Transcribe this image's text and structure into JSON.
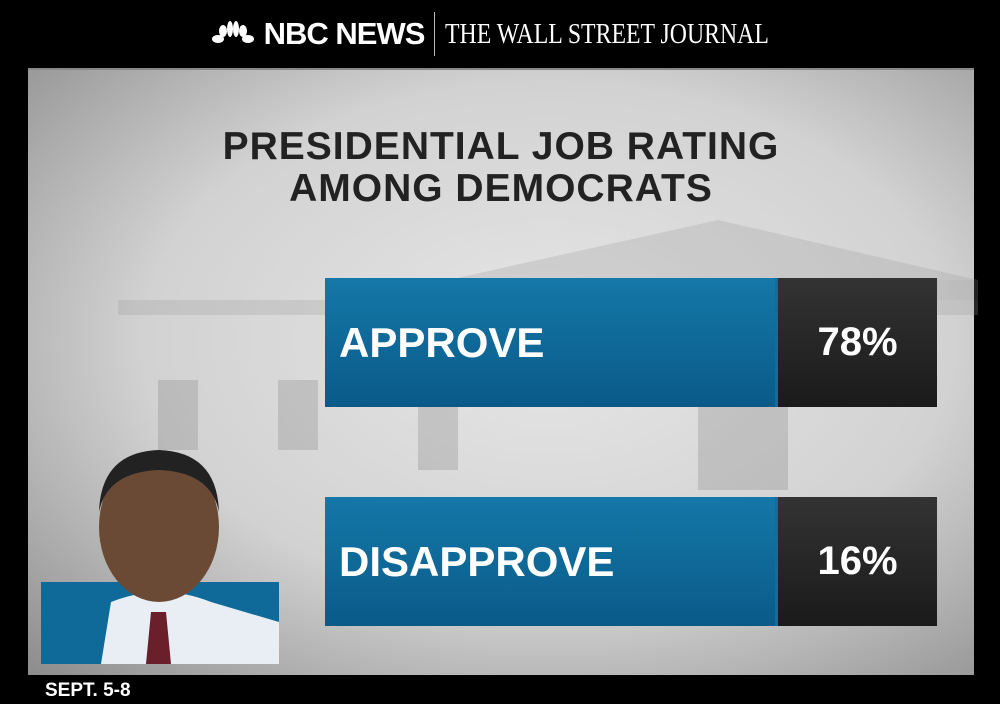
{
  "header": {
    "network": "NBC NEWS",
    "partner": "THE WALL STREET JOURNAL"
  },
  "chart_data": {
    "type": "bar",
    "title": "PRESIDENTIAL JOB RATING AMONG DEMOCRATS",
    "title_lines": [
      "PRESIDENTIAL JOB RATING",
      "AMONG DEMOCRATS"
    ],
    "categories": [
      "APPROVE",
      "DISAPPROVE"
    ],
    "values": [
      78,
      16
    ],
    "value_labels": [
      "78%",
      "16%"
    ],
    "colors": {
      "label_bar": "#0f6a99",
      "value_box": "#242424"
    }
  },
  "footer": {
    "date": "SEPT. 5-8"
  }
}
